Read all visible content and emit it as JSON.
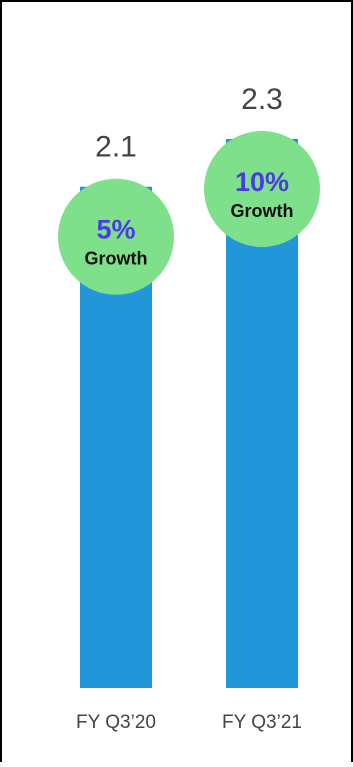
{
  "chart_data": {
    "type": "bar",
    "categories": [
      "FY Q3’20",
      "FY Q3’21"
    ],
    "values": [
      2.1,
      2.3
    ],
    "value_labels": [
      "2.1",
      "2.3"
    ],
    "ylim": [
      0,
      2.3
    ],
    "grid": false,
    "annotations": [
      {
        "category": "FY Q3’20",
        "percent": "5%",
        "text": "Growth"
      },
      {
        "category": "FY Q3’21",
        "percent": "10%",
        "text": "Growth"
      }
    ],
    "colors": {
      "bar": "#2196D8",
      "bubble": "#7EE08A",
      "percent_text": "#4A3AE8",
      "growth_text": "#111111",
      "value_text": "#444444",
      "tick_text": "#444444"
    }
  }
}
